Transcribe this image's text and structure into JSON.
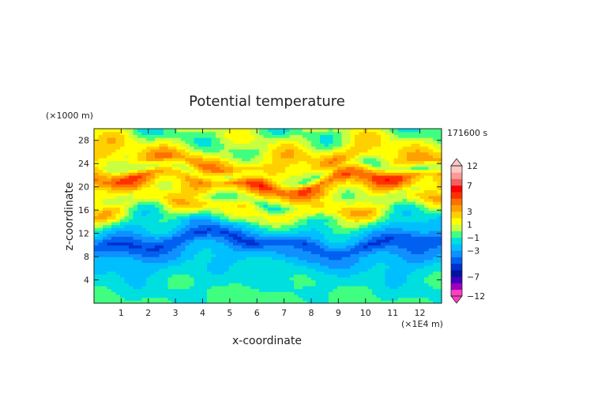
{
  "chart_data": {
    "type": "heatmap",
    "title": "Potential temperature",
    "xlabel": "x-coordinate",
    "ylabel": "z-coordinate",
    "x_unit_label": "(×1E4 m)",
    "y_unit_label": "(×1000 m)",
    "time_label": "171600 s",
    "xlim": [
      0,
      12.8
    ],
    "ylim": [
      0,
      30
    ],
    "x_ticks": [
      1,
      2,
      3,
      4,
      5,
      6,
      7,
      8,
      9,
      10,
      11,
      12
    ],
    "y_ticks": [
      4,
      8,
      12,
      16,
      20,
      24,
      28
    ],
    "colorbar": {
      "levels": [
        -12,
        -9,
        -8,
        -7,
        -6,
        -5,
        -4,
        -3,
        -2,
        -1,
        0,
        1,
        2,
        3,
        4,
        5,
        6,
        7,
        8,
        9,
        12
      ],
      "colors": [
        "#ff3fbf",
        "#a000c0",
        "#3f00c0",
        "#0010a0",
        "#0030d0",
        "#0060f0",
        "#1090ff",
        "#00bfff",
        "#00dfdf",
        "#40ff80",
        "#c8ff40",
        "#ffff00",
        "#ffd000",
        "#ffa000",
        "#ff7000",
        "#ff3000",
        "#ff0000",
        "#f06060",
        "#ff9898",
        "#ffc8c8"
      ],
      "tick_labels": [
        "12",
        "7",
        "3",
        "1",
        "−1",
        "−3",
        "−7",
        "−12"
      ],
      "tick_values": [
        12,
        7,
        3,
        1,
        -1,
        -3,
        -7,
        -12
      ]
    },
    "bands": [
      {
        "z": 0.0,
        "v": -0.6
      },
      {
        "z": 1.5,
        "v": -0.9
      },
      {
        "z": 3.0,
        "v": -1.2
      },
      {
        "z": 4.5,
        "v": -1.4
      },
      {
        "z": 6.0,
        "v": -1.8
      },
      {
        "z": 7.5,
        "v": -2.6
      },
      {
        "z": 9.0,
        "v": -3.3
      },
      {
        "z": 10.5,
        "v": -5.0
      },
      {
        "z": 12.0,
        "v": -3.0
      },
      {
        "z": 13.5,
        "v": -1.5
      },
      {
        "z": 15.0,
        "v": 0.3
      },
      {
        "z": 16.5,
        "v": 1.8
      },
      {
        "z": 18.0,
        "v": 0.5
      },
      {
        "z": 19.5,
        "v": 2.8
      },
      {
        "z": 21.0,
        "v": 4.5
      },
      {
        "z": 22.5,
        "v": 0.5
      },
      {
        "z": 24.0,
        "v": 3.0
      },
      {
        "z": 25.5,
        "v": 2.0
      },
      {
        "z": 27.0,
        "v": 0.8
      },
      {
        "z": 28.5,
        "v": 0.2
      },
      {
        "z": 30.0,
        "v": 0.0
      }
    ]
  }
}
